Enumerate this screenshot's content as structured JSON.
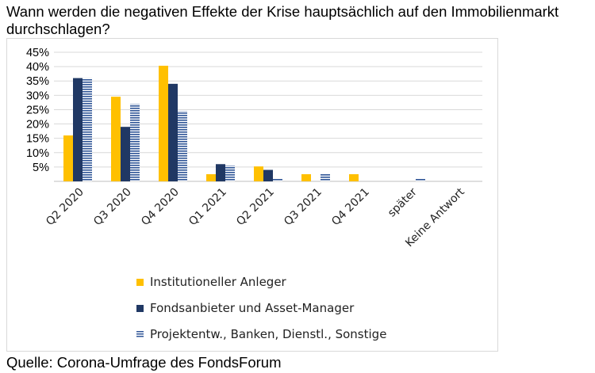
{
  "title": "Wann werden die negativen Effekte der Krise hauptsächlich auf den Immobilienmarkt durchschlagen?",
  "source": "Quelle: Corona-Umfrage des FondsForum",
  "colors": {
    "institutional": "#ffc000",
    "fondsanbieter": "#203864",
    "projekt": "#2f5597",
    "grid": "#d9d9d9",
    "axis": "#bfbfbf"
  },
  "chart_data": {
    "type": "bar",
    "title": "",
    "xlabel": "",
    "ylabel": "",
    "ylim": [
      0,
      45
    ],
    "yticks": [
      "5%",
      "10%",
      "15%",
      "20%",
      "25%",
      "30%",
      "35%",
      "40%",
      "45%"
    ],
    "grid": true,
    "legend_position": "bottom",
    "categories": [
      "Q2 2020",
      "Q3 2020",
      "Q4 2020",
      "Q1 2021",
      "Q2 2021",
      "Q3 2021",
      "Q4 2021",
      "später",
      "Keine Antwort"
    ],
    "series": [
      {
        "name": "Institutioneller Anleger",
        "color": "#ffc000",
        "pattern": "solid",
        "values": [
          16,
          29.5,
          40.3,
          2.5,
          5.2,
          2.5,
          2.5,
          0,
          0
        ]
      },
      {
        "name": "Fondsanbieter und Asset-Manager",
        "color": "#203864",
        "pattern": "solid",
        "values": [
          36,
          19,
          34,
          6,
          4,
          0,
          0,
          0,
          0
        ]
      },
      {
        "name": "Projektentw., Banken, Dienstl., Sonstige",
        "color": "#2f5597",
        "pattern": "horizontal-stripes",
        "values": [
          36,
          27,
          24.5,
          5.5,
          1,
          2.5,
          0,
          1,
          0
        ]
      }
    ]
  }
}
